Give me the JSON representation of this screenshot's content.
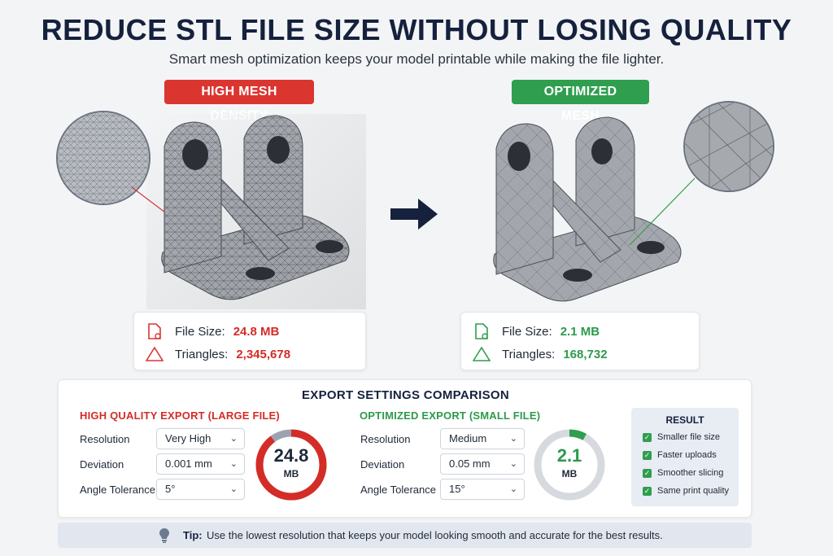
{
  "header": {
    "title": "REDUCE STL FILE SIZE WITHOUT LOSING QUALITY",
    "subtitle": "Smart mesh optimization keeps your model printable while making the file lighter."
  },
  "left_model": {
    "badge": "HIGH MESH DENSITY",
    "file_size_label": "File Size:",
    "file_size_value": "24.8 MB",
    "triangles_label": "Triangles:",
    "triangles_value": "2,345,678"
  },
  "right_model": {
    "badge": "OPTIMIZED MESH",
    "file_size_label": "File Size:",
    "file_size_value": "2.1 MB",
    "triangles_label": "Triangles:",
    "triangles_value": "168,732"
  },
  "comparison": {
    "title": "EXPORT SETTINGS COMPARISON",
    "high": {
      "title": "HIGH QUALITY EXPORT (LARGE FILE)",
      "resolution_label": "Resolution",
      "resolution_value": "Very High",
      "deviation_label": "Deviation",
      "deviation_value": "0.001 mm",
      "angle_label": "Angle Tolerance",
      "angle_value": "5°",
      "gauge_value": "24.8",
      "gauge_unit": "MB",
      "gauge_fraction": 0.9
    },
    "optimized": {
      "title": "OPTIMIZED EXPORT (SMALL FILE)",
      "resolution_label": "Resolution",
      "resolution_value": "Medium",
      "deviation_label": "Deviation",
      "deviation_value": "0.05 mm",
      "angle_label": "Angle Tolerance",
      "angle_value": "15°",
      "gauge_value": "2.1",
      "gauge_unit": "MB",
      "gauge_fraction": 0.08
    },
    "result": {
      "title": "RESULT",
      "items": [
        "Smaller file size",
        "Faster uploads",
        "Smoother slicing",
        "Same print quality"
      ]
    }
  },
  "tip": {
    "label": "Tip:",
    "text": "Use the lowest resolution that keeps your model looking smooth and accurate for the best results."
  },
  "colors": {
    "accent_red": "#db3530",
    "accent_green": "#2f9e4f",
    "navy": "#15213d"
  },
  "icons": [
    "file-icon",
    "triangle-icon",
    "arrow-right-icon",
    "check-icon",
    "lightbulb-icon",
    "chevron-down-icon"
  ]
}
